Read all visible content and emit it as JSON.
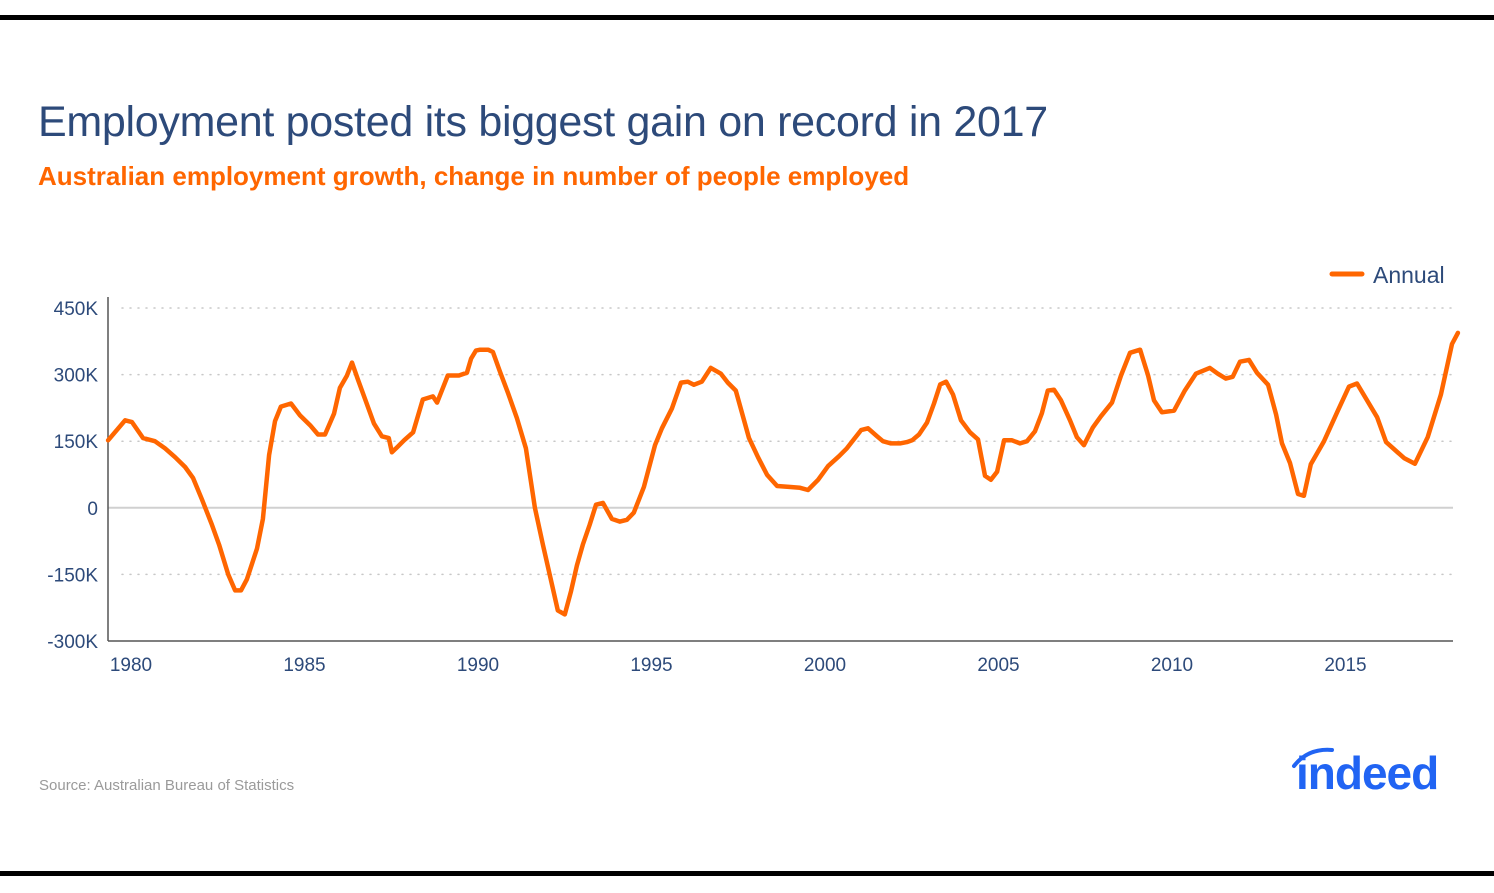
{
  "header": {
    "title": "Employment posted its biggest gain on record in 2017",
    "subtitle": "Australian employment growth, change in number of people employed"
  },
  "footer": {
    "source": "Source: Australian Bureau of Statistics",
    "logo_text": "indeed"
  },
  "colors": {
    "title": "#2d4a7a",
    "accent": "#ff6600",
    "brand": "#2164f3",
    "source": "#9a9a9a"
  },
  "chart_data": {
    "type": "line",
    "title": "Employment posted its biggest gain on record in 2017",
    "subtitle": "Australian employment growth, change in number of people employed",
    "xlabel": "",
    "ylabel": "",
    "xlim": [
      1979.34,
      2018.0
    ],
    "ylim": [
      -300000,
      450000
    ],
    "x_ticks": [
      1980,
      1985,
      1990,
      1995,
      2000,
      2005,
      2010,
      2015
    ],
    "x_tick_labels": [
      "1980",
      "1985",
      "1990",
      "1995",
      "2000",
      "2005",
      "2010",
      "2015"
    ],
    "y_ticks": [
      -300000,
      -150000,
      0,
      150000,
      300000,
      450000
    ],
    "y_tick_labels": [
      "-300K",
      "-150K",
      "0",
      "150K",
      "300K",
      "450K"
    ],
    "grid": "horizontal-dotted",
    "legend": {
      "position": "top-right",
      "entries": [
        "Annual"
      ]
    },
    "series": [
      {
        "name": "Annual",
        "color": "#ff6600",
        "points": [
          [
            1979.34,
            152000
          ],
          [
            1979.83,
            197000
          ],
          [
            1980.03,
            193000
          ],
          [
            1980.35,
            157000
          ],
          [
            1980.69,
            150000
          ],
          [
            1980.98,
            134000
          ],
          [
            1981.27,
            114000
          ],
          [
            1981.56,
            92000
          ],
          [
            1981.79,
            67000
          ],
          [
            1982.05,
            18000
          ],
          [
            1982.33,
            -38000
          ],
          [
            1982.54,
            -83000
          ],
          [
            1982.8,
            -150000
          ],
          [
            1983.0,
            -186000
          ],
          [
            1983.17,
            -186000
          ],
          [
            1983.34,
            -161000
          ],
          [
            1983.63,
            -92000
          ],
          [
            1983.8,
            -25000
          ],
          [
            1983.98,
            119000
          ],
          [
            1984.15,
            195000
          ],
          [
            1984.32,
            228000
          ],
          [
            1984.61,
            235000
          ],
          [
            1984.87,
            208000
          ],
          [
            1985.16,
            186000
          ],
          [
            1985.39,
            165000
          ],
          [
            1985.59,
            165000
          ],
          [
            1985.85,
            212000
          ],
          [
            1986.02,
            270000
          ],
          [
            1986.22,
            297000
          ],
          [
            1986.37,
            327000
          ],
          [
            1986.54,
            289000
          ],
          [
            1986.74,
            246000
          ],
          [
            1987.0,
            190000
          ],
          [
            1987.23,
            161000
          ],
          [
            1987.43,
            157000
          ],
          [
            1987.52,
            125000
          ],
          [
            1987.64,
            134000
          ],
          [
            1987.87,
            152000
          ],
          [
            1988.13,
            170000
          ],
          [
            1988.41,
            244000
          ],
          [
            1988.7,
            251000
          ],
          [
            1988.82,
            237000
          ],
          [
            1989.13,
            298000
          ],
          [
            1989.45,
            298000
          ],
          [
            1989.68,
            304000
          ],
          [
            1989.8,
            336000
          ],
          [
            1989.94,
            354000
          ],
          [
            1990.06,
            356000
          ],
          [
            1990.29,
            356000
          ],
          [
            1990.43,
            351000
          ],
          [
            1990.63,
            307000
          ],
          [
            1990.86,
            260000
          ],
          [
            1991.12,
            202000
          ],
          [
            1991.38,
            134000
          ],
          [
            1991.64,
            0
          ],
          [
            1991.87,
            -83000
          ],
          [
            1992.13,
            -172000
          ],
          [
            1992.3,
            -231000
          ],
          [
            1992.5,
            -240000
          ],
          [
            1992.68,
            -188000
          ],
          [
            1992.85,
            -130000
          ],
          [
            1993.02,
            -83000
          ],
          [
            1993.22,
            -38000
          ],
          [
            1993.4,
            7000
          ],
          [
            1993.6,
            11000
          ],
          [
            1993.86,
            -25000
          ],
          [
            1994.09,
            -31000
          ],
          [
            1994.29,
            -27000
          ],
          [
            1994.49,
            -11000
          ],
          [
            1994.78,
            47000
          ],
          [
            1995.1,
            141000
          ],
          [
            1995.3,
            179000
          ],
          [
            1995.59,
            224000
          ],
          [
            1995.85,
            282000
          ],
          [
            1996.05,
            284000
          ],
          [
            1996.22,
            277000
          ],
          [
            1996.45,
            284000
          ],
          [
            1996.71,
            315000
          ],
          [
            1997.0,
            302000
          ],
          [
            1997.2,
            282000
          ],
          [
            1997.43,
            264000
          ],
          [
            1997.81,
            157000
          ],
          [
            1998.07,
            114000
          ],
          [
            1998.33,
            74000
          ],
          [
            1998.62,
            49000
          ],
          [
            1998.96,
            47000
          ],
          [
            1999.28,
            45000
          ],
          [
            1999.51,
            40000
          ],
          [
            1999.8,
            63000
          ],
          [
            2000.09,
            94000
          ],
          [
            2000.4,
            116000
          ],
          [
            2000.63,
            134000
          ],
          [
            2000.86,
            157000
          ],
          [
            2001.04,
            175000
          ],
          [
            2001.24,
            179000
          ],
          [
            2001.5,
            161000
          ],
          [
            2001.67,
            150000
          ],
          [
            2001.9,
            145000
          ],
          [
            2002.16,
            145000
          ],
          [
            2002.36,
            148000
          ],
          [
            2002.51,
            152000
          ],
          [
            2002.71,
            165000
          ],
          [
            2002.94,
            192000
          ],
          [
            2003.14,
            235000
          ],
          [
            2003.32,
            278000
          ],
          [
            2003.49,
            284000
          ],
          [
            2003.69,
            255000
          ],
          [
            2003.92,
            197000
          ],
          [
            2004.18,
            170000
          ],
          [
            2004.41,
            154000
          ],
          [
            2004.61,
            72000
          ],
          [
            2004.78,
            63000
          ],
          [
            2004.96,
            81000
          ],
          [
            2005.16,
            152000
          ],
          [
            2005.39,
            152000
          ],
          [
            2005.62,
            145000
          ],
          [
            2005.82,
            150000
          ],
          [
            2006.05,
            172000
          ],
          [
            2006.25,
            213000
          ],
          [
            2006.42,
            264000
          ],
          [
            2006.6,
            266000
          ],
          [
            2006.8,
            242000
          ],
          [
            2007.06,
            197000
          ],
          [
            2007.26,
            159000
          ],
          [
            2007.46,
            141000
          ],
          [
            2007.72,
            181000
          ],
          [
            2007.95,
            206000
          ],
          [
            2008.27,
            237000
          ],
          [
            2008.53,
            298000
          ],
          [
            2008.79,
            349000
          ],
          [
            2009.08,
            356000
          ],
          [
            2009.31,
            298000
          ],
          [
            2009.48,
            242000
          ],
          [
            2009.71,
            215000
          ],
          [
            2010.06,
            219000
          ],
          [
            2010.37,
            264000
          ],
          [
            2010.69,
            302000
          ],
          [
            2011.09,
            315000
          ],
          [
            2011.32,
            302000
          ],
          [
            2011.55,
            291000
          ],
          [
            2011.75,
            295000
          ],
          [
            2011.96,
            329000
          ],
          [
            2012.22,
            333000
          ],
          [
            2012.45,
            304000
          ],
          [
            2012.77,
            277000
          ],
          [
            2013.0,
            210000
          ],
          [
            2013.17,
            145000
          ],
          [
            2013.4,
            101000
          ],
          [
            2013.63,
            31000
          ],
          [
            2013.8,
            27000
          ],
          [
            2014.0,
            98000
          ],
          [
            2014.38,
            150000
          ],
          [
            2014.78,
            219000
          ],
          [
            2015.1,
            273000
          ],
          [
            2015.33,
            280000
          ],
          [
            2015.91,
            204000
          ],
          [
            2016.17,
            148000
          ],
          [
            2016.69,
            112000
          ],
          [
            2017.0,
            99000
          ],
          [
            2017.37,
            159000
          ],
          [
            2017.75,
            255000
          ],
          [
            2018.07,
            369000
          ],
          [
            2018.24,
            394000
          ]
        ]
      }
    ]
  }
}
